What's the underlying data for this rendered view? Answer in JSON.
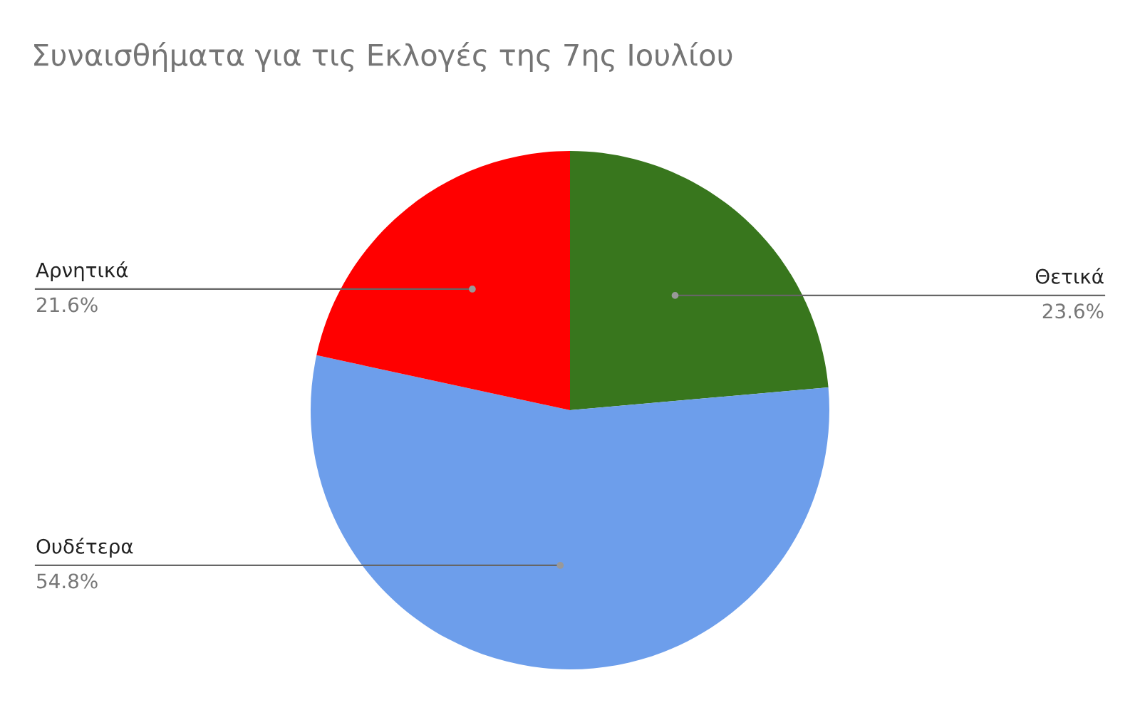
{
  "chart_data": {
    "type": "pie",
    "title": "Συναισθήματα για τις Εκλογές της 7ης Ιουλίου",
    "categories": [
      "Θετικά",
      "Ουδέτερα",
      "Αρνητικά"
    ],
    "values": [
      23.6,
      54.8,
      21.6
    ],
    "value_labels": [
      "23.6%",
      "54.8%",
      "21.6%"
    ],
    "colors": [
      "#38761d",
      "#6d9eeb",
      "#ff0000"
    ],
    "legend": false
  }
}
